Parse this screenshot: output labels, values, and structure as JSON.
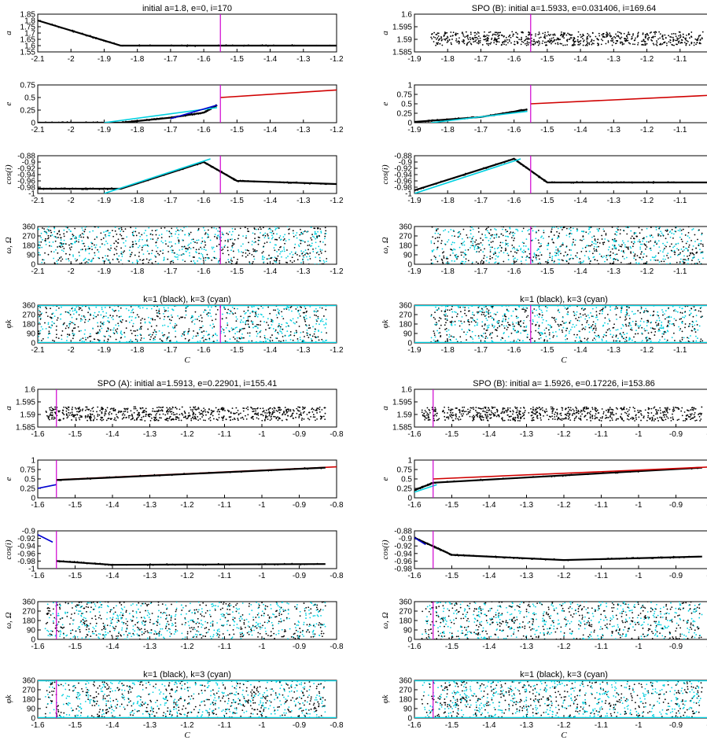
{
  "figure": {
    "panel_titles": {
      "p00": "initial a=1.8, e=0, i=170",
      "p01": "SPO (B): initial a=1.5933, e=0.031406, i=169.64",
      "p10": "SPO (A): initial a=1.5913, e=0.22901, i=155.41",
      "p11": "SPO (B): initial a= 1.5926, e=0.17226, i=153.86",
      "phi": "k=1 (black), k=3 (cyan)"
    },
    "row_labels": [
      "a",
      "e",
      "cos(i)",
      "ω, Ω",
      "φk"
    ],
    "x_label": "C"
  },
  "chart_data": [
    {
      "id": "p00",
      "type": "scatter",
      "title": "initial a=1.8, e=0, i=170",
      "xlim": [
        -2.1,
        -1.2
      ],
      "vline": -1.55,
      "xticks": [
        "-2.1",
        "-2",
        "-1.9",
        "-1.8",
        "-1.7",
        "-1.6",
        "-1.5",
        "-1.4",
        "-1.3",
        "-1.2"
      ],
      "xtick_values": [
        -2.1,
        -2.0,
        -1.9,
        -1.8,
        -1.7,
        -1.6,
        -1.5,
        -1.4,
        -1.3,
        -1.2
      ],
      "subplots": {
        "a": {
          "ylabel": "a",
          "ylim": [
            1.55,
            1.85
          ],
          "yticks": [
            "1.85",
            "1.8",
            "1.75",
            "1.7",
            "1.65",
            "1.6",
            "1.55"
          ],
          "series": [
            {
              "name": "a",
              "color": "#000000",
              "points": [
                [
                  -2.1,
                  1.8
                ],
                [
                  -1.85,
                  1.6
                ],
                [
                  -1.2,
                  1.6
                ]
              ]
            }
          ]
        },
        "e": {
          "ylabel": "e",
          "ylim": [
            0,
            0.75
          ],
          "yticks": [
            "0.75",
            "0.5",
            "0.25",
            "0"
          ],
          "series": [
            {
              "color": "#000000",
              "points": [
                [
                  -2.1,
                  0
                ],
                [
                  -1.85,
                  0
                ],
                [
                  -1.7,
                  0.1
                ],
                [
                  -1.6,
                  0.2
                ],
                [
                  -1.56,
                  0.35
                ]
              ]
            },
            {
              "color": "#d00000",
              "points": [
                [
                  -1.55,
                  0.5
                ],
                [
                  -1.2,
                  0.65
                ]
              ]
            },
            {
              "color": "#00d0e0",
              "points": [
                [
                  -1.9,
                  0
                ],
                [
                  -1.56,
                  0.3
                ]
              ]
            },
            {
              "color": "#0000d0",
              "points": [
                [
                  -1.7,
                  0.08
                ],
                [
                  -1.56,
                  0.35
                ]
              ]
            }
          ]
        },
        "cos": {
          "ylabel": "cos(i)",
          "ylim": [
            -1,
            -0.88
          ],
          "yticks": [
            "-0.88",
            "-0.9",
            "-0.92",
            "-0.94",
            "-0.96",
            "-0.98",
            "-1"
          ],
          "series": [
            {
              "color": "#000000",
              "points": [
                [
                  -2.1,
                  -0.985
                ],
                [
                  -1.85,
                  -0.985
                ],
                [
                  -1.6,
                  -0.9
                ],
                [
                  -1.5,
                  -0.96
                ],
                [
                  -1.2,
                  -0.97
                ]
              ]
            },
            {
              "color": "#00d0e0",
              "points": [
                [
                  -1.9,
                  -1
                ],
                [
                  -1.58,
                  -0.89
                ]
              ]
            }
          ]
        },
        "w": {
          "ylabel": "ω, Ω",
          "ylim": [
            0,
            360
          ],
          "yticks": [
            "360",
            "270",
            "180",
            "90",
            "0"
          ],
          "fill": "scatter"
        },
        "phi": {
          "ylabel": "φk",
          "ylim": [
            0,
            360
          ],
          "yticks": [
            "360",
            "270",
            "180",
            "90",
            "0"
          ],
          "title": "k=1 (black), k=3 (cyan)",
          "fill": "scatter"
        }
      }
    },
    {
      "id": "p01",
      "type": "scatter",
      "title": "SPO (B): initial a=1.5933, e=0.031406, i=169.64",
      "xlim": [
        -1.9,
        -1.0
      ],
      "vline": -1.55,
      "xticks": [
        "-1.9",
        "-1.8",
        "-1.7",
        "-1.6",
        "-1.5",
        "-1.4",
        "-1.3",
        "-1.2",
        "-1.1",
        "-1"
      ],
      "xtick_values": [
        -1.9,
        -1.8,
        -1.7,
        -1.6,
        -1.5,
        -1.4,
        -1.3,
        -1.2,
        -1.1,
        -1.0
      ],
      "subplots": {
        "a": {
          "ylabel": "a",
          "ylim": [
            1.585,
            1.6
          ],
          "yticks": [
            "1.6",
            "1.595",
            "1.59",
            "1.585"
          ],
          "fill": "band",
          "band": [
            1.5875,
            1.593
          ],
          "xstart": -1.85
        },
        "e": {
          "ylabel": "e",
          "ylim": [
            0,
            1
          ],
          "yticks": [
            "1",
            "0.75",
            "0.5",
            "0.25",
            "0"
          ],
          "series": [
            {
              "color": "#000000",
              "points": [
                [
                  -1.9,
                  0.02
                ],
                [
                  -1.7,
                  0.15
                ],
                [
                  -1.56,
                  0.35
                ]
              ]
            },
            {
              "color": "#d00000",
              "points": [
                [
                  -1.55,
                  0.5
                ],
                [
                  -1.0,
                  0.73
                ]
              ]
            },
            {
              "color": "#00d0e0",
              "points": [
                [
                  -1.85,
                  0
                ],
                [
                  -1.56,
                  0.3
                ]
              ]
            }
          ]
        },
        "cos": {
          "ylabel": "cos(i)",
          "ylim": [
            -1,
            -0.88
          ],
          "yticks": [
            "-0.88",
            "-0.9",
            "-0.92",
            "-0.94",
            "-0.96",
            "-0.98",
            "-1"
          ],
          "series": [
            {
              "color": "#000000",
              "points": [
                [
                  -1.9,
                  -0.99
                ],
                [
                  -1.6,
                  -0.89
                ],
                [
                  -1.5,
                  -0.965
                ],
                [
                  -1.0,
                  -0.965
                ]
              ]
            },
            {
              "color": "#00d0e0",
              "points": [
                [
                  -1.9,
                  -1
                ],
                [
                  -1.58,
                  -0.89
                ]
              ]
            }
          ]
        },
        "w": {
          "ylabel": "ω, Ω",
          "ylim": [
            0,
            360
          ],
          "yticks": [
            "360",
            "270",
            "180",
            "90",
            "0"
          ],
          "fill": "scatter"
        },
        "phi": {
          "ylabel": "φk",
          "ylim": [
            0,
            360
          ],
          "yticks": [
            "360",
            "270",
            "180",
            "90",
            "0"
          ],
          "title": "k=1 (black), k=3 (cyan)",
          "fill": "scatter"
        }
      }
    },
    {
      "id": "p10",
      "type": "scatter",
      "title": "SPO (A): initial a=1.5913, e=0.22901, i=155.41",
      "xlim": [
        -1.6,
        -0.8
      ],
      "vline": -1.55,
      "xticks": [
        "-1.6",
        "-1.5",
        "-1.4",
        "-1.3",
        "-1.2",
        "-1.1",
        "-1",
        "-0.9",
        "-0.8"
      ],
      "xtick_values": [
        -1.6,
        -1.5,
        -1.4,
        -1.3,
        -1.2,
        -1.1,
        -1.0,
        -0.9,
        -0.8
      ],
      "subplots": {
        "a": {
          "ylabel": "a",
          "ylim": [
            1.585,
            1.6
          ],
          "yticks": [
            "1.6",
            "1.595",
            "1.59",
            "1.585"
          ],
          "fill": "band",
          "band": [
            1.5875,
            1.593
          ],
          "xstart": -1.58
        },
        "e": {
          "ylabel": "e",
          "ylim": [
            0,
            1
          ],
          "yticks": [
            "1",
            "0.75",
            "0.5",
            "0.25",
            "0"
          ],
          "series": [
            {
              "color": "#0000d0",
              "points": [
                [
                  -1.6,
                  0.25
                ],
                [
                  -1.55,
                  0.35
                ]
              ]
            },
            {
              "color": "#d00000",
              "points": [
                [
                  -1.55,
                  0.48
                ],
                [
                  -0.8,
                  0.82
                ]
              ]
            },
            {
              "color": "#000000",
              "points": [
                [
                  -1.55,
                  0.47
                ],
                [
                  -0.83,
                  0.8
                ]
              ]
            }
          ]
        },
        "cos": {
          "ylabel": "cos(i)",
          "ylim": [
            -1,
            -0.9
          ],
          "yticks": [
            "-0.9",
            "-0.92",
            "-0.94",
            "-0.96",
            "-0.98",
            "-1"
          ],
          "series": [
            {
              "color": "#0000d0",
              "points": [
                [
                  -1.6,
                  -0.91
                ],
                [
                  -1.56,
                  -0.93
                ]
              ]
            },
            {
              "color": "#000000",
              "points": [
                [
                  -1.55,
                  -0.98
                ],
                [
                  -1.4,
                  -0.99
                ],
                [
                  -0.83,
                  -0.988
                ]
              ]
            }
          ]
        },
        "w": {
          "ylabel": "ω, Ω",
          "ylim": [
            0,
            360
          ],
          "yticks": [
            "360",
            "270",
            "180",
            "90",
            "0"
          ],
          "fill": "scatter"
        },
        "phi": {
          "ylabel": "φk",
          "ylim": [
            0,
            360
          ],
          "yticks": [
            "360",
            "270",
            "180",
            "90",
            "0"
          ],
          "title": "k=1 (black), k=3 (cyan)",
          "fill": "scatter"
        }
      }
    },
    {
      "id": "p11",
      "type": "scatter",
      "title": "SPO (B): initial a= 1.5926, e=0.17226, i=153.86",
      "xlim": [
        -1.6,
        -0.8
      ],
      "vline": -1.55,
      "xticks": [
        "-1.6",
        "-1.5",
        "-1.4",
        "-1.3",
        "-1.2",
        "-1.1",
        "-1",
        "-0.9",
        "-0.8"
      ],
      "xtick_values": [
        -1.6,
        -1.5,
        -1.4,
        -1.3,
        -1.2,
        -1.1,
        -1.0,
        -0.9,
        -0.8
      ],
      "subplots": {
        "a": {
          "ylabel": "a",
          "ylim": [
            1.585,
            1.6
          ],
          "yticks": [
            "1.6",
            "1.595",
            "1.59",
            "1.585"
          ],
          "fill": "band",
          "band": [
            1.5875,
            1.593
          ],
          "xstart": -1.58
        },
        "e": {
          "ylabel": "e",
          "ylim": [
            0,
            1
          ],
          "yticks": [
            "1",
            "0.75",
            "0.5",
            "0.25",
            "0"
          ],
          "series": [
            {
              "color": "#000000",
              "points": [
                [
                  -1.6,
                  0.2
                ],
                [
                  -1.55,
                  0.4
                ],
                [
                  -0.83,
                  0.8
                ]
              ]
            },
            {
              "color": "#d00000",
              "points": [
                [
                  -1.55,
                  0.5
                ],
                [
                  -0.8,
                  0.82
                ]
              ]
            },
            {
              "color": "#00d0e0",
              "points": [
                [
                  -1.6,
                  0.15
                ],
                [
                  -1.54,
                  0.35
                ]
              ]
            }
          ]
        },
        "cos": {
          "ylabel": "cos(i)",
          "ylim": [
            -0.99,
            -0.88
          ],
          "yticks": [
            "-0.88",
            "-0.9",
            "-0.92",
            "-0.94",
            "-0.96",
            "-0.98"
          ],
          "series": [
            {
              "color": "#000000",
              "points": [
                [
                  -1.6,
                  -0.9
                ],
                [
                  -1.5,
                  -0.95
                ],
                [
                  -1.2,
                  -0.965
                ],
                [
                  -0.83,
                  -0.955
                ]
              ]
            },
            {
              "color": "#0000d0",
              "points": [
                [
                  -1.6,
                  -0.9
                ],
                [
                  -1.57,
                  -0.92
                ]
              ]
            }
          ]
        },
        "w": {
          "ylabel": "ω, Ω",
          "ylim": [
            0,
            360
          ],
          "yticks": [
            "360",
            "270",
            "180",
            "90",
            "0"
          ],
          "fill": "scatter"
        },
        "phi": {
          "ylabel": "φk",
          "ylim": [
            0,
            360
          ],
          "yticks": [
            "360",
            "270",
            "180",
            "90",
            "0"
          ],
          "title": "k=1 (black), k=3 (cyan)",
          "fill": "scatter"
        }
      }
    }
  ],
  "colors": {
    "black": "#000000",
    "cyan": "#00d0e0",
    "red": "#d00000",
    "blue": "#0000d0",
    "magenta": "#d000d0"
  }
}
